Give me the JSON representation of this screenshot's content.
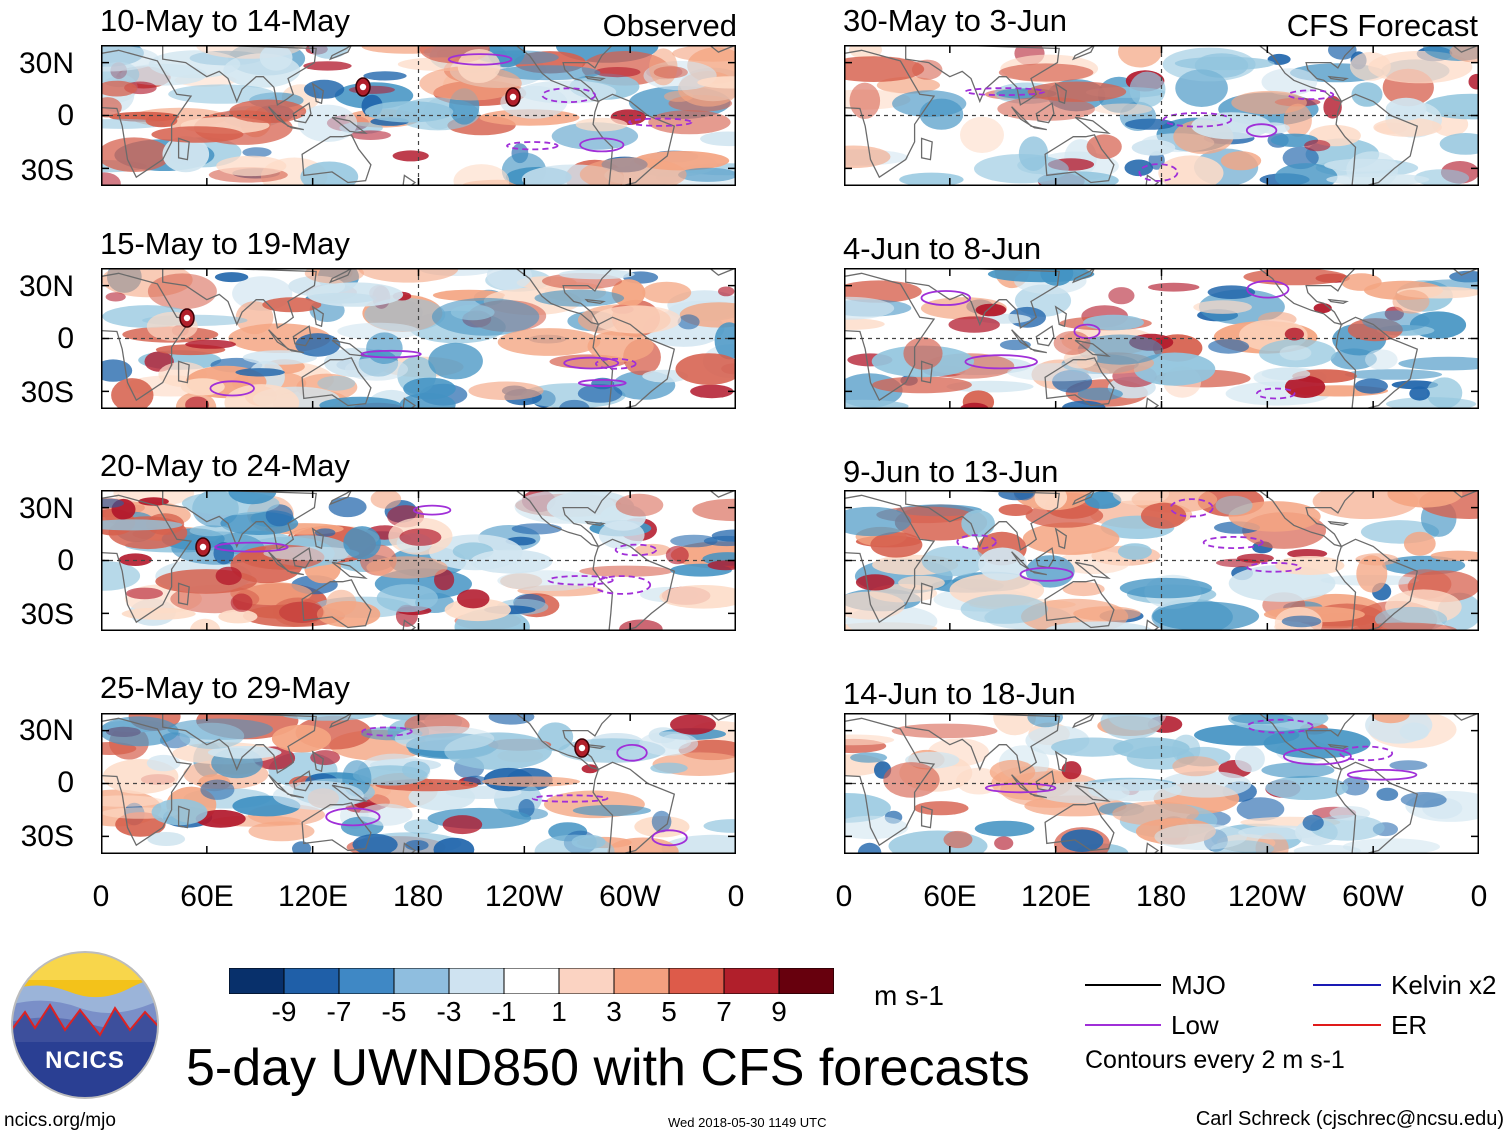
{
  "panels": [
    {
      "title": "10-May to 14-May",
      "tag": "Observed"
    },
    {
      "title": "30-May to 3-Jun",
      "tag": "CFS Forecast"
    },
    {
      "title": "15-May to 19-May",
      "tag": ""
    },
    {
      "title": "4-Jun to 8-Jun",
      "tag": ""
    },
    {
      "title": "20-May to 24-May",
      "tag": ""
    },
    {
      "title": "9-Jun to 13-Jun",
      "tag": ""
    },
    {
      "title": "25-May to 29-May",
      "tag": ""
    },
    {
      "title": "14-Jun to 18-Jun",
      "tag": ""
    }
  ],
  "axes": {
    "lat_labels": [
      "30N",
      "0",
      "30S"
    ],
    "lon_labels": [
      "0",
      "60E",
      "120E",
      "180",
      "120W",
      "60W",
      "0"
    ]
  },
  "colorbar": {
    "ticks": [
      "-9",
      "-7",
      "-5",
      "-3",
      "-1",
      "1",
      "3",
      "5",
      "7",
      "9"
    ],
    "units": "m s-1",
    "colors": [
      "#08306b",
      "#1f5fa8",
      "#3f88c5",
      "#8fbedf",
      "#cfe3f1",
      "#ffffff",
      "#fbd3c2",
      "#f3a07f",
      "#dd5b4a",
      "#b11f2b",
      "#67000d"
    ]
  },
  "legend": {
    "items": [
      {
        "label": "MJO",
        "color": "#000000"
      },
      {
        "label": "Kelvin x2",
        "color": "#1a1ab4"
      },
      {
        "label": "Low",
        "color": "#a02fd8"
      },
      {
        "label": "ER",
        "color": "#e01a1a"
      }
    ],
    "note": "Contours every 2 m s-1"
  },
  "logo": {
    "text": "NCICS"
  },
  "main_title": "5-day UWND850 with CFS forecasts",
  "footer": {
    "url": "ncics.org/mjo",
    "timestamp": "Wed 2018-05-30 1149 UTC",
    "author": "Carl Schreck (cjschrec@ncsu.edu)"
  },
  "storm_markers": [
    {
      "panel": 0,
      "label": "C"
    },
    {
      "panel": 0,
      "label": "1"
    },
    {
      "panel": 2,
      "label": "S"
    },
    {
      "panel": 4,
      "label": "M"
    },
    {
      "panel": 6,
      "label": "A"
    }
  ]
}
